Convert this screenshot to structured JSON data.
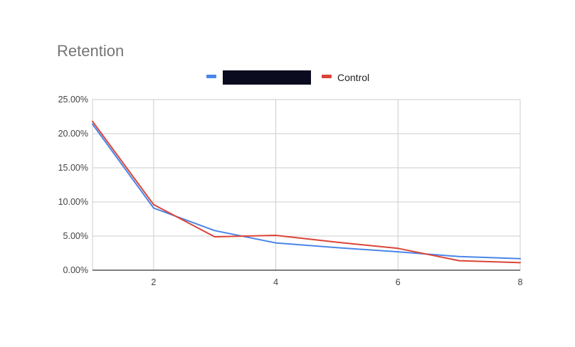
{
  "chart_data": {
    "type": "line",
    "title": "Retention",
    "xlabel": "",
    "ylabel": "",
    "x": [
      1,
      2,
      3,
      4,
      5,
      6,
      7,
      8
    ],
    "xlim": [
      1,
      8
    ],
    "ylim": [
      0,
      0.25
    ],
    "x_ticks": [
      "2",
      "4",
      "6",
      "8"
    ],
    "y_ticks": [
      "0.00%",
      "5.00%",
      "10.00%",
      "15.00%",
      "20.00%",
      "25.00%"
    ],
    "grid": true,
    "legend_position": "top",
    "series": [
      {
        "name": "",
        "color": "#4a86e8",
        "legend_label_redacted": true,
        "values": [
          0.214,
          0.091,
          0.058,
          0.04,
          0.033,
          0.027,
          0.02,
          0.017
        ]
      },
      {
        "name": "Control",
        "color": "#db4437",
        "values": [
          0.218,
          0.096,
          0.049,
          0.051,
          0.041,
          0.032,
          0.014,
          0.011
        ]
      }
    ]
  }
}
